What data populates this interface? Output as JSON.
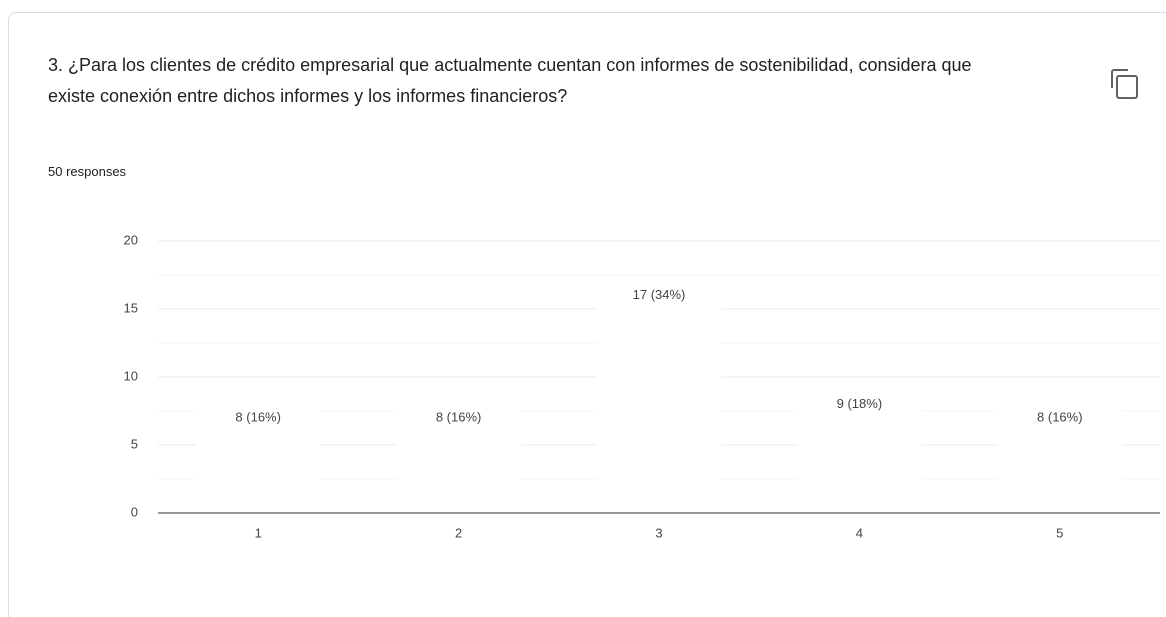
{
  "chart_data": {
    "type": "bar",
    "title": "3. ¿Para los clientes de crédito empresarial que actualmente cuentan con informes de sostenibilidad, considera que existe conexión entre dichos informes y los informes financieros?",
    "subtitle": "50 responses",
    "categories": [
      "1",
      "2",
      "3",
      "4",
      "5"
    ],
    "values": [
      8,
      8,
      17,
      9,
      8
    ],
    "value_labels": [
      "8 (16%)",
      "8 (16%)",
      "17 (34%)",
      "9 (18%)",
      "8 (16%)"
    ],
    "color": "#ffffff",
    "ylim": [
      0,
      20
    ],
    "yticks": [
      0,
      5,
      10,
      15,
      20
    ],
    "grid": true
  }
}
